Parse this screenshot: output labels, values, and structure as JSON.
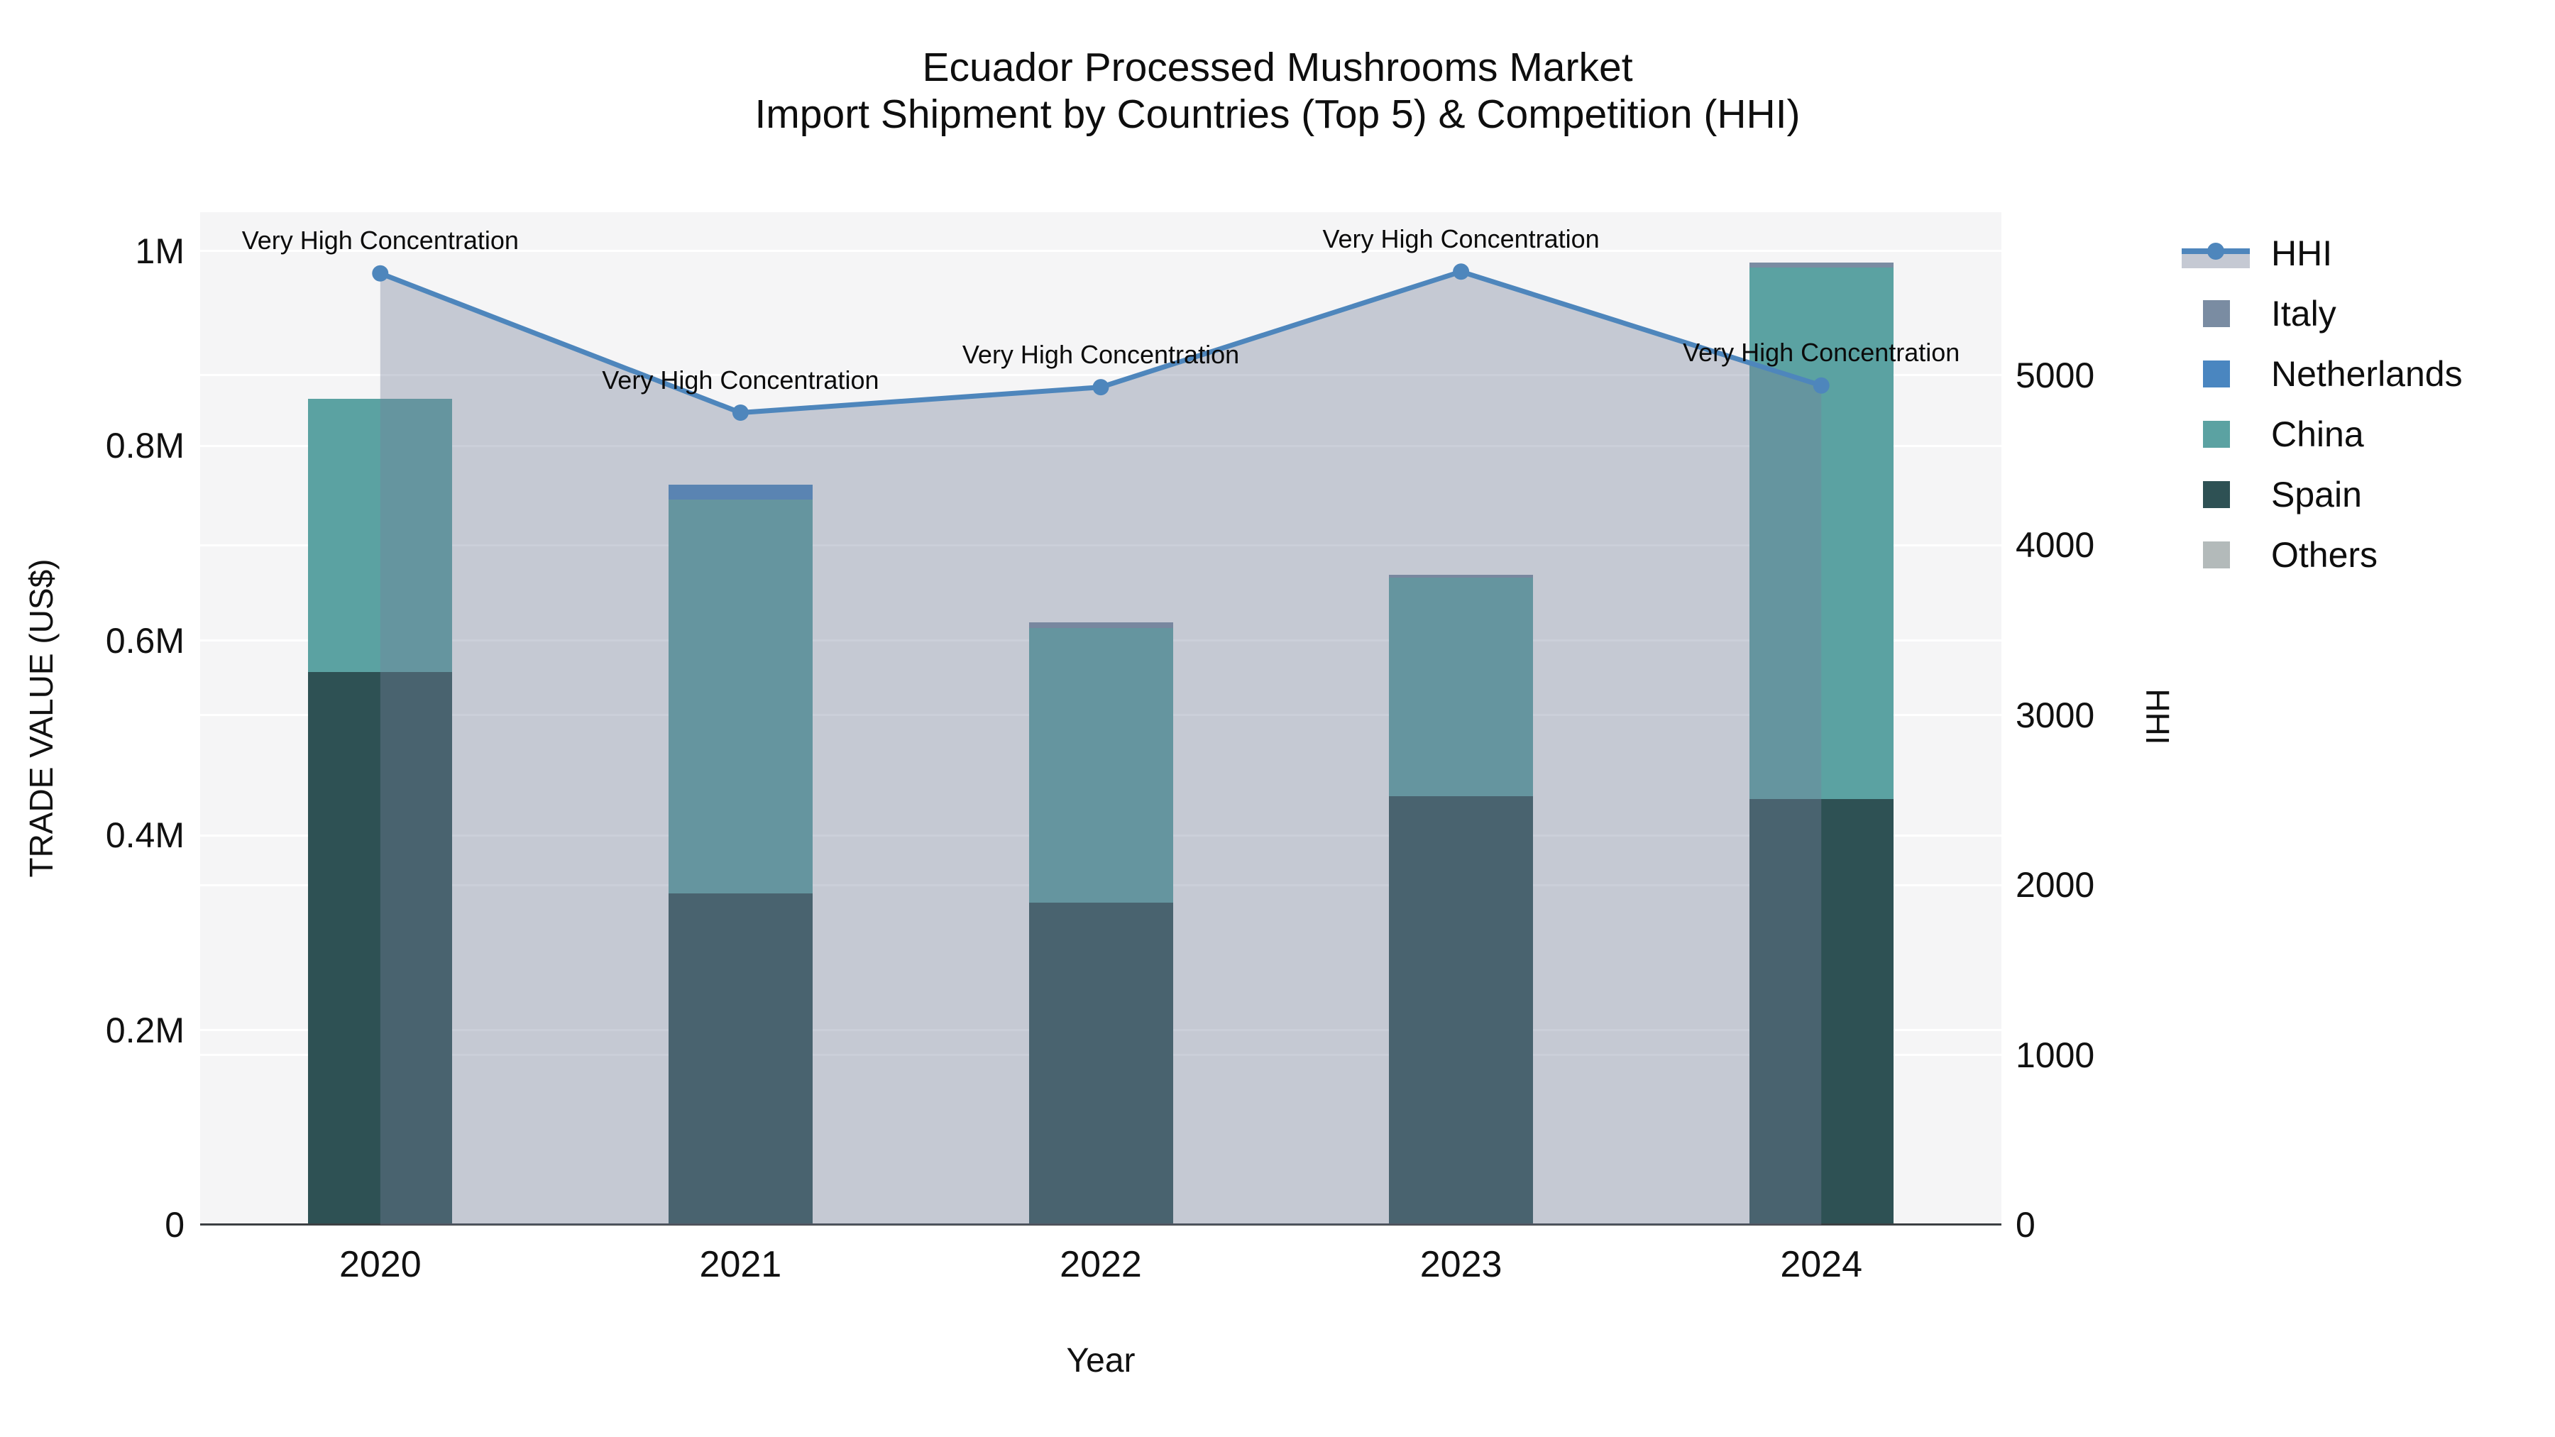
{
  "title": {
    "line1": "Ecuador Processed Mushrooms Market",
    "line2": "Import Shipment by Countries (Top 5) & Competition (HHI)"
  },
  "axes": {
    "x": {
      "title": "Year",
      "tick_labels": [
        "2020",
        "2021",
        "2022",
        "2023",
        "2024"
      ]
    },
    "y_left": {
      "title": "TRADE VALUE (US$)",
      "ticks": [
        {
          "label": "0",
          "value": 0
        },
        {
          "label": "0.2M",
          "value": 200000
        },
        {
          "label": "0.4M",
          "value": 400000
        },
        {
          "label": "0.6M",
          "value": 600000
        },
        {
          "label": "0.8M",
          "value": 800000
        },
        {
          "label": "1M",
          "value": 1000000
        }
      ],
      "range": [
        0,
        1040000
      ]
    },
    "y_right": {
      "title": "HHI",
      "ticks": [
        {
          "label": "0",
          "value": 0
        },
        {
          "label": "1000",
          "value": 1000
        },
        {
          "label": "2000",
          "value": 2000
        },
        {
          "label": "3000",
          "value": 3000
        },
        {
          "label": "4000",
          "value": 4000
        },
        {
          "label": "5000",
          "value": 5000
        }
      ],
      "range": [
        0,
        5960
      ]
    }
  },
  "legend": {
    "items": [
      {
        "label": "HHI",
        "type": "line",
        "color": "#4e86bc"
      },
      {
        "label": "Italy",
        "type": "square",
        "color": "#7a8ca2"
      },
      {
        "label": "Netherlands",
        "type": "square",
        "color": "#4a86c0"
      },
      {
        "label": "China",
        "type": "square",
        "color": "#5ba2a2"
      },
      {
        "label": "Spain",
        "type": "square",
        "color": "#2e5154"
      },
      {
        "label": "Others",
        "type": "square",
        "color": "#b3baba"
      }
    ]
  },
  "chart_data": {
    "type": "combo-stacked-bar-line",
    "categories": [
      "2020",
      "2021",
      "2022",
      "2023",
      "2024"
    ],
    "bar_stack_order_bottom_to_top": [
      "Spain",
      "China",
      "Netherlands",
      "Italy",
      "Others"
    ],
    "series": [
      {
        "name": "Spain",
        "color": "#2e5154",
        "axis": "left",
        "values": [
          568000,
          340000,
          331000,
          440000,
          437000
        ]
      },
      {
        "name": "China",
        "color": "#5ba2a2",
        "axis": "left",
        "values": [
          280000,
          405000,
          282000,
          225000,
          546000
        ]
      },
      {
        "name": "Netherlands",
        "color": "#4a86c0",
        "axis": "left",
        "values": [
          0,
          15000,
          0,
          0,
          0
        ]
      },
      {
        "name": "Italy",
        "color": "#7a8ca2",
        "axis": "left",
        "values": [
          0,
          0,
          6000,
          2500,
          5000
        ]
      },
      {
        "name": "Others",
        "color": "#b3baba",
        "axis": "left",
        "values": [
          0,
          0,
          0,
          0,
          0
        ]
      }
    ],
    "line_series": {
      "name": "HHI",
      "axis": "right",
      "color": "#4e86bc",
      "area_fill": "rgba(119,130,156,0.38)",
      "values": [
        5600,
        4780,
        4930,
        5610,
        4940
      ],
      "point_annotations": [
        "Very High Concentration",
        "Very High Concentration",
        "Very High Concentration",
        "Very High Concentration",
        "Very High Concentration"
      ]
    },
    "title": "Ecuador Processed Mushrooms Market — Import Shipment by Countries (Top 5) & Competition (HHI)",
    "xlabel": "Year",
    "ylabel_left": "TRADE VALUE (US$)",
    "ylabel_right": "HHI",
    "ylim_left": [
      0,
      1040000
    ],
    "ylim_right": [
      0,
      5960
    ],
    "grid": true,
    "legend_position": "right"
  }
}
